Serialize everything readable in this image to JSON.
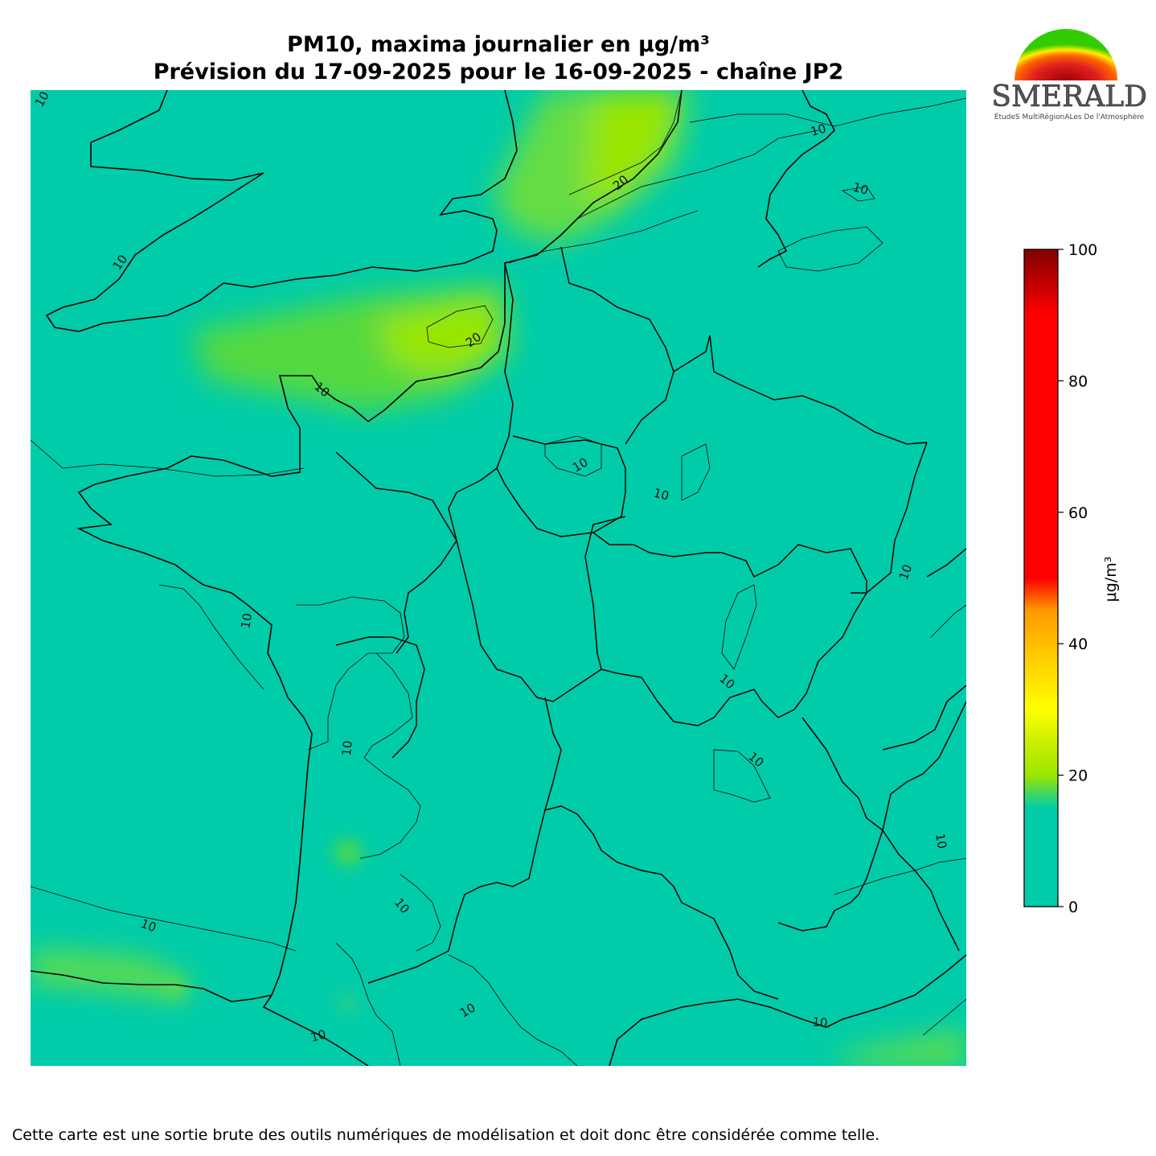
{
  "header": {
    "title_line1": "PM10, maxima journalier en µg/m³",
    "title_line2": "Prévision du 17-09-2025 pour le 16-09-2025 - chaîne JP2"
  },
  "logo": {
    "name": "ESMERALDA",
    "subtitle": "ÉtudeS MultiRégionALes De l'Atmosphère"
  },
  "map": {
    "background_color": "#00cca9",
    "contour_labels": [
      "10",
      "10",
      "10",
      "20",
      "10",
      "20",
      "10",
      "10",
      "10",
      "10",
      "10",
      "10",
      "10",
      "10",
      "10",
      "10",
      "10",
      "10",
      "10",
      "10"
    ]
  },
  "colorbar": {
    "unit_label": "µg/m³",
    "ticks": [
      "0",
      "20",
      "40",
      "60",
      "80",
      "100"
    ],
    "min": 0,
    "max": 100,
    "stops": [
      {
        "value": 0,
        "color": "#00cca9"
      },
      {
        "value": 15,
        "color": "#00cca9"
      },
      {
        "value": 20,
        "color": "#99e600"
      },
      {
        "value": 25,
        "color": "#ccee00"
      },
      {
        "value": 30,
        "color": "#ffff00"
      },
      {
        "value": 38,
        "color": "#ffcc00"
      },
      {
        "value": 45,
        "color": "#ff9900"
      },
      {
        "value": 50,
        "color": "#ff0000"
      },
      {
        "value": 90,
        "color": "#ff0000"
      },
      {
        "value": 100,
        "color": "#800000"
      }
    ]
  },
  "footer": {
    "disclaimer": "Cette carte est une sortie brute des outils numériques de modélisation et doit donc être considérée comme telle."
  }
}
